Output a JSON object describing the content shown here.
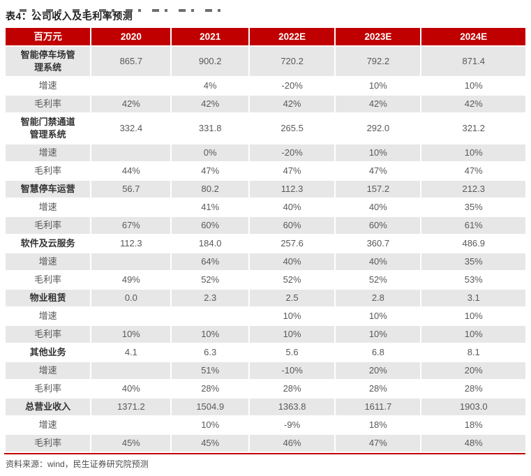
{
  "page": {
    "title": "表4：公司收入及毛利率预测",
    "source_note": "资料来源：wind，民生证券研究院预测"
  },
  "colors": {
    "header_bg": "#C00000",
    "header_text": "#FFFFFF",
    "row_shade": "#E7E7E7",
    "body_text": "#595959",
    "label_text": "#333333",
    "title_text": "#1F1F1F",
    "rule_red": "#C00000",
    "note_text": "#4D4D4D"
  },
  "table": {
    "unit_header": "百万元",
    "columns": [
      "百万元",
      "2020",
      "2021",
      "2022E",
      "2023E",
      "2024E"
    ],
    "rows": [
      {
        "label": "智能停车场管\n理系统",
        "kind": "category",
        "values": [
          "865.7",
          "900.2",
          "720.2",
          "792.2",
          "871.4"
        ]
      },
      {
        "label": "增速",
        "kind": "metric",
        "values": [
          "",
          "4%",
          "-20%",
          "10%",
          "10%"
        ]
      },
      {
        "label": "毛利率",
        "kind": "metric",
        "values": [
          "42%",
          "42%",
          "42%",
          "42%",
          "42%"
        ]
      },
      {
        "label": "智能门禁通道\n管理系统",
        "kind": "category",
        "values": [
          "332.4",
          "331.8",
          "265.5",
          "292.0",
          "321.2"
        ]
      },
      {
        "label": "增速",
        "kind": "metric",
        "values": [
          "",
          "0%",
          "-20%",
          "10%",
          "10%"
        ]
      },
      {
        "label": "毛利率",
        "kind": "metric",
        "values": [
          "44%",
          "47%",
          "47%",
          "47%",
          "47%"
        ]
      },
      {
        "label": "智慧停车运营",
        "kind": "category",
        "values": [
          "56.7",
          "80.2",
          "112.3",
          "157.2",
          "212.3"
        ]
      },
      {
        "label": "增速",
        "kind": "metric",
        "values": [
          "",
          "41%",
          "40%",
          "40%",
          "35%"
        ]
      },
      {
        "label": "毛利率",
        "kind": "metric",
        "values": [
          "67%",
          "60%",
          "60%",
          "60%",
          "61%"
        ]
      },
      {
        "label": "软件及云服务",
        "kind": "category",
        "values": [
          "112.3",
          "184.0",
          "257.6",
          "360.7",
          "486.9"
        ]
      },
      {
        "label": "增速",
        "kind": "metric",
        "values": [
          "",
          "64%",
          "40%",
          "40%",
          "35%"
        ]
      },
      {
        "label": "毛利率",
        "kind": "metric",
        "values": [
          "49%",
          "52%",
          "52%",
          "52%",
          "53%"
        ]
      },
      {
        "label": "物业租赁",
        "kind": "category",
        "values": [
          "0.0",
          "2.3",
          "2.5",
          "2.8",
          "3.1"
        ]
      },
      {
        "label": "增速",
        "kind": "metric",
        "values": [
          "",
          "",
          "10%",
          "10%",
          "10%"
        ]
      },
      {
        "label": "毛利率",
        "kind": "metric",
        "values": [
          "10%",
          "10%",
          "10%",
          "10%",
          "10%"
        ]
      },
      {
        "label": "其他业务",
        "kind": "category",
        "values": [
          "4.1",
          "6.3",
          "5.6",
          "6.8",
          "8.1"
        ]
      },
      {
        "label": "增速",
        "kind": "metric",
        "values": [
          "",
          "51%",
          "-10%",
          "20%",
          "20%"
        ]
      },
      {
        "label": "毛利率",
        "kind": "metric",
        "values": [
          "40%",
          "28%",
          "28%",
          "28%",
          "28%"
        ]
      },
      {
        "label": "总营业收入",
        "kind": "category",
        "values": [
          "1371.2",
          "1504.9",
          "1363.8",
          "1611.7",
          "1903.0"
        ]
      },
      {
        "label": "增速",
        "kind": "metric",
        "values": [
          "",
          "10%",
          "-9%",
          "18%",
          "18%"
        ]
      },
      {
        "label": "毛利率",
        "kind": "metric",
        "values": [
          "45%",
          "45%",
          "46%",
          "47%",
          "48%"
        ]
      }
    ]
  }
}
